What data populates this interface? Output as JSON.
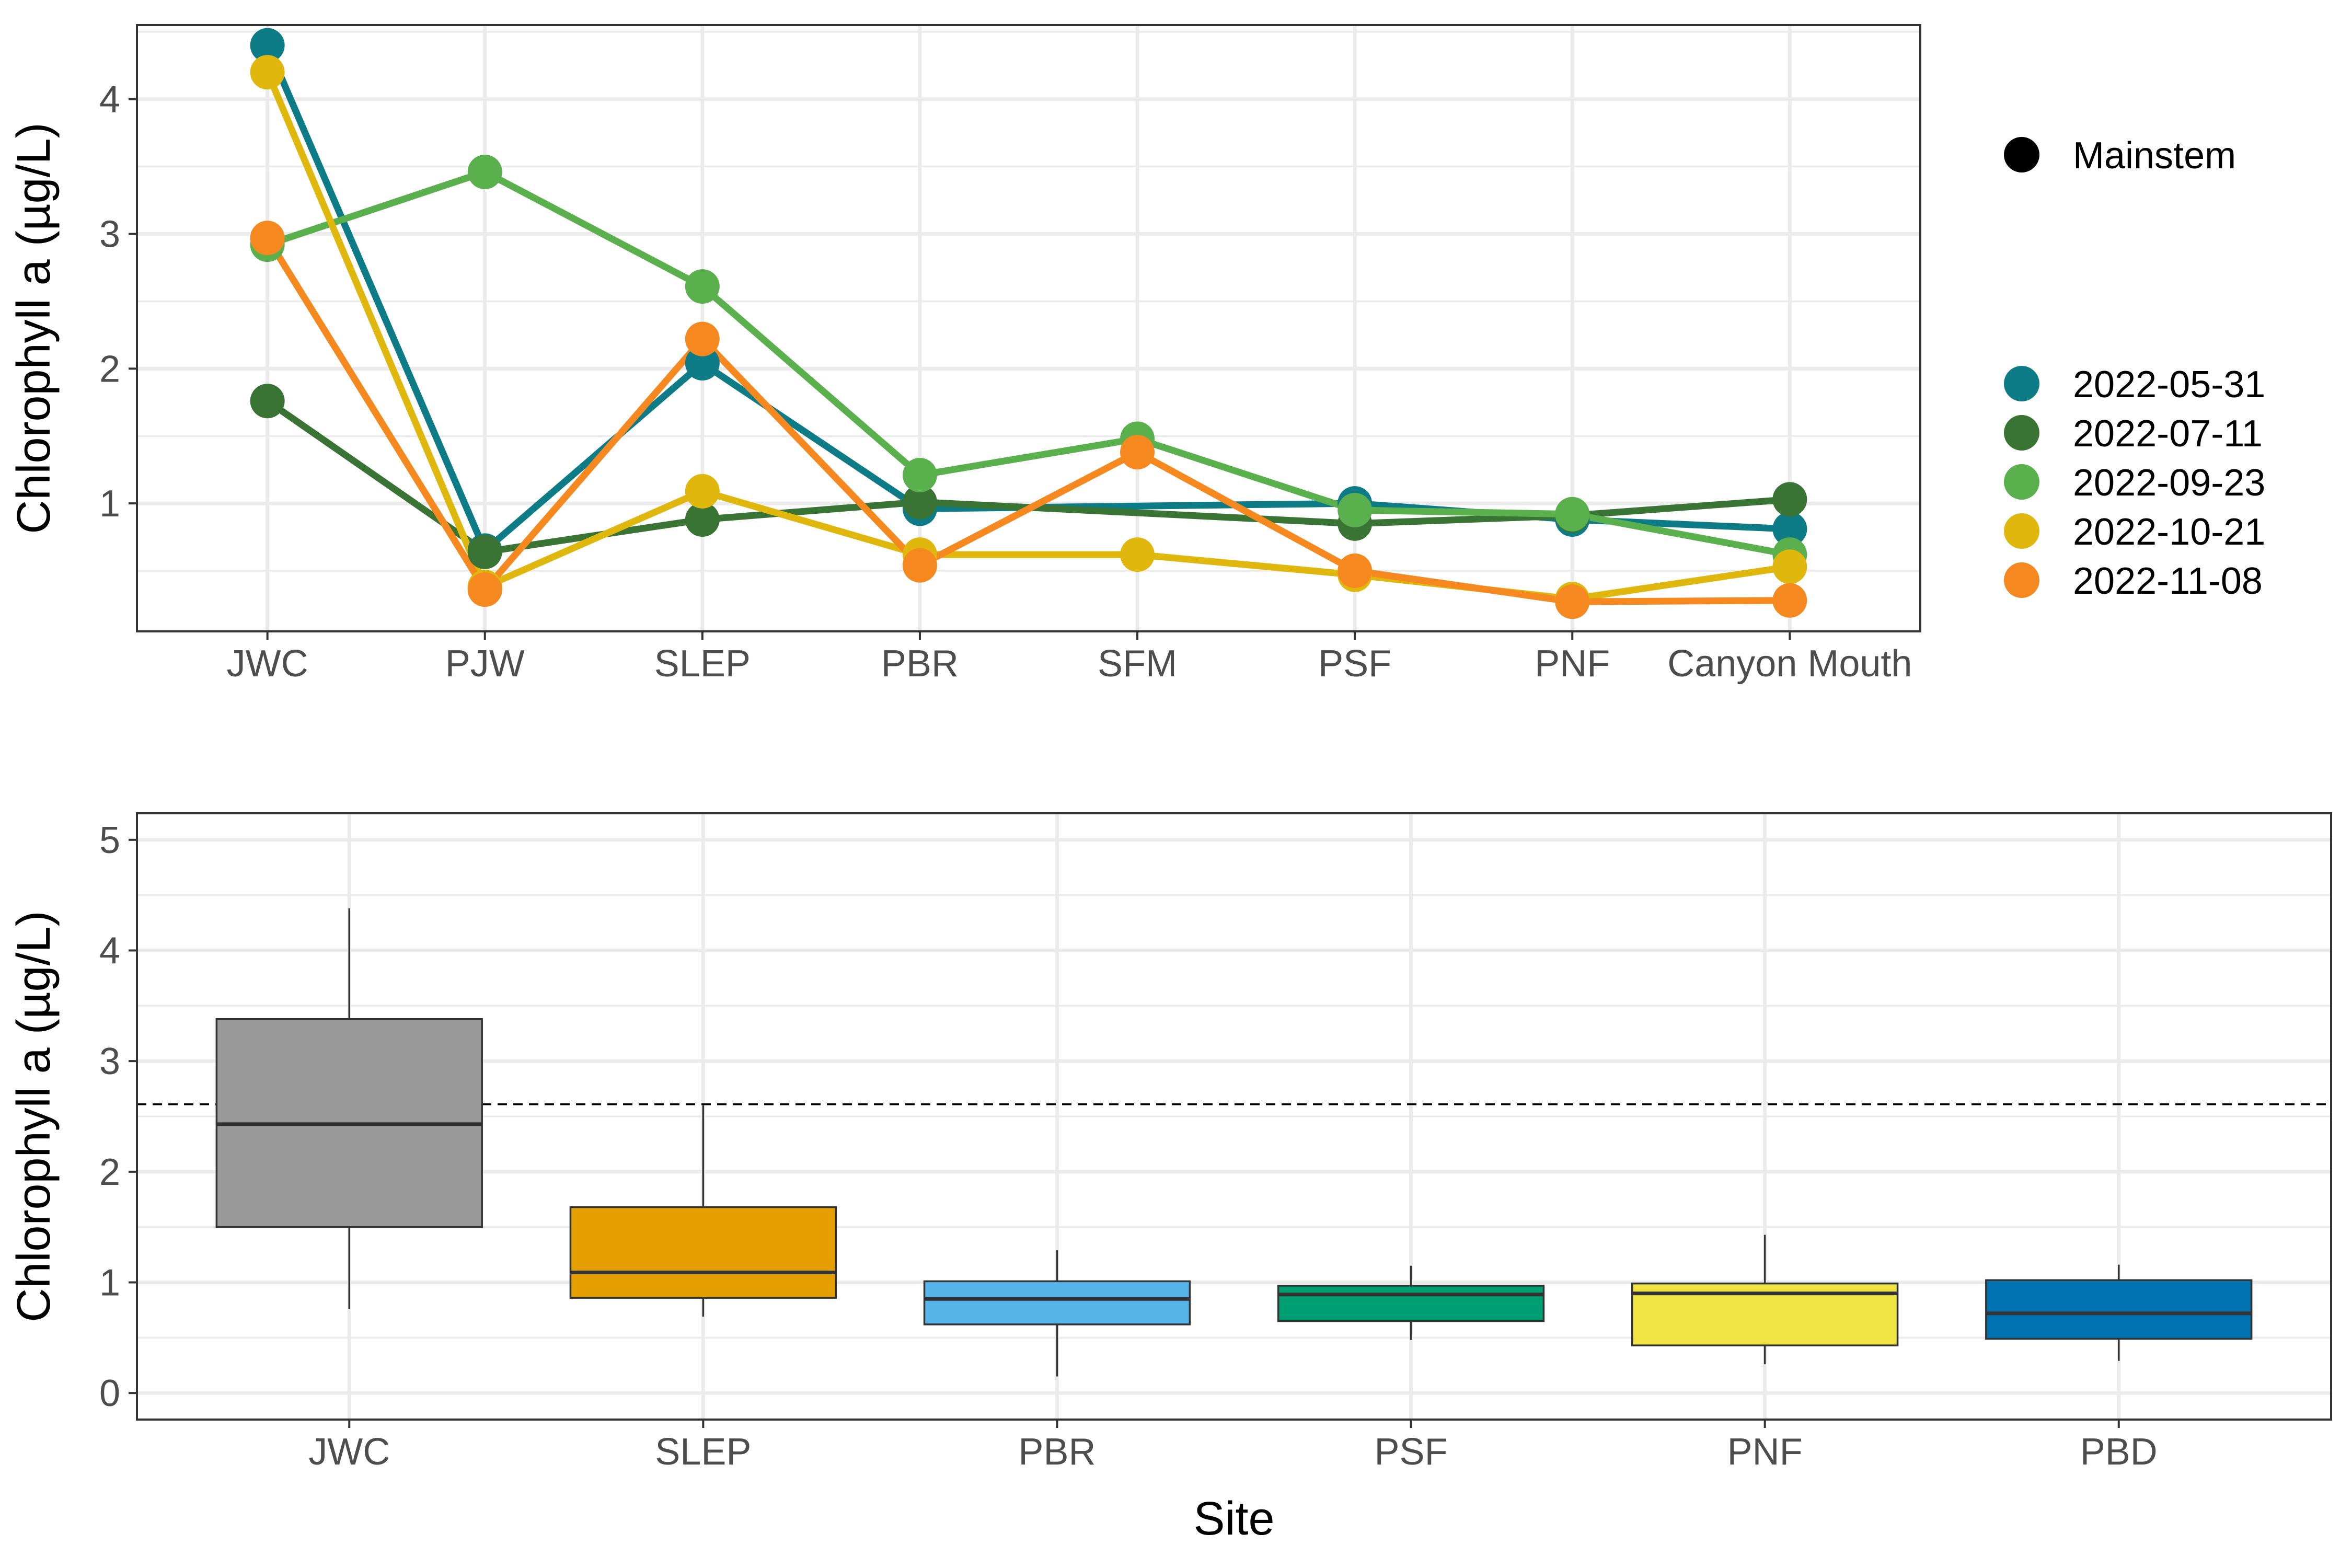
{
  "chart_data": [
    {
      "type": "line",
      "xlabel": "",
      "ylabel": "Chlorophyll a (µg/L)",
      "categories": [
        "JWC",
        "PJW",
        "SLEP",
        "PBR",
        "SFM",
        "PSF",
        "PNF",
        "Canyon Mouth"
      ],
      "ylim": [
        0.05,
        4.55
      ],
      "yticks": [
        1,
        2,
        3,
        4
      ],
      "grid": true,
      "legend_position": "right",
      "shape_legend": [
        "Mainstem"
      ],
      "series": [
        {
          "name": "2022-05-31",
          "color": "#0e7c86",
          "values": [
            4.4,
            0.65,
            2.04,
            0.96,
            null,
            1.0,
            0.88,
            0.81
          ]
        },
        {
          "name": "2022-07-11",
          "color": "#3a7434",
          "values": [
            1.76,
            0.64,
            0.88,
            1.01,
            null,
            0.85,
            0.91,
            1.03
          ]
        },
        {
          "name": "2022-09-23",
          "color": "#5bb04e",
          "values": [
            2.92,
            3.46,
            2.61,
            1.21,
            1.48,
            0.95,
            0.92,
            0.62
          ]
        },
        {
          "name": "2022-10-21",
          "color": "#dfb70d",
          "values": [
            4.2,
            0.38,
            1.09,
            0.62,
            0.62,
            0.47,
            0.29,
            0.53
          ]
        },
        {
          "name": "2022-11-08",
          "color": "#f5891f",
          "values": [
            2.97,
            0.36,
            2.22,
            0.54,
            1.38,
            0.5,
            0.27,
            0.28
          ]
        }
      ]
    },
    {
      "type": "box",
      "xlabel": "Site",
      "ylabel": "Chlorophyll a (µg/L)",
      "categories": [
        "JWC",
        "SLEP",
        "PBR",
        "PSF",
        "PNF",
        "PBD"
      ],
      "ylim": [
        -0.24,
        5.24
      ],
      "yticks": [
        0,
        1,
        2,
        3,
        4,
        5
      ],
      "grid": true,
      "reference_line": 2.61,
      "boxes": [
        {
          "site": "JWC",
          "color": "#999999",
          "min": 0.76,
          "q1": 1.5,
          "median": 2.43,
          "q3": 3.38,
          "max": 4.38
        },
        {
          "site": "SLEP",
          "color": "#e69f00",
          "min": 0.69,
          "q1": 0.86,
          "median": 1.09,
          "q3": 1.68,
          "max": 2.6
        },
        {
          "site": "PBR",
          "color": "#56b4e9",
          "min": 0.15,
          "q1": 0.62,
          "median": 0.85,
          "q3": 1.01,
          "max": 1.29
        },
        {
          "site": "PSF",
          "color": "#009e73",
          "min": 0.48,
          "q1": 0.65,
          "median": 0.89,
          "q3": 0.97,
          "max": 1.15
        },
        {
          "site": "PNF",
          "color": "#f0e442",
          "min": 0.26,
          "q1": 0.43,
          "median": 0.9,
          "q3": 0.99,
          "max": 1.43
        },
        {
          "site": "PBD",
          "color": "#0072b2",
          "min": 0.29,
          "q1": 0.49,
          "median": 0.72,
          "q3": 1.02,
          "max": 1.16
        }
      ]
    }
  ]
}
